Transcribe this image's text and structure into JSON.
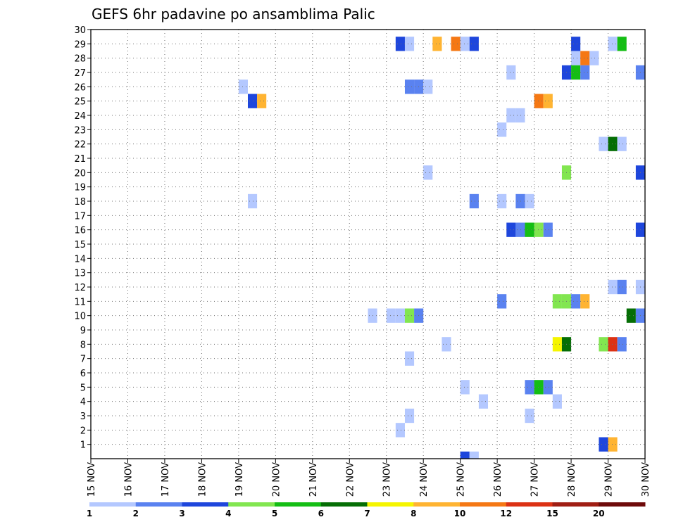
{
  "chart_data": {
    "type": "heatmap",
    "title": "GEFS 6hr padavine po ansamblima Palic",
    "xlabel": "",
    "ylabel": "",
    "x_ticks": [
      "15 NOV",
      "16 NOV",
      "17 NOV",
      "18 NOV",
      "19 NOV",
      "20 NOV",
      "21 NOV",
      "22 NOV",
      "23 NOV",
      "24 NOV",
      "25 NOV",
      "26 NOV",
      "27 NOV",
      "28 NOV",
      "29 NOV",
      "30 NOV"
    ],
    "y_ticks": [
      1,
      2,
      3,
      4,
      5,
      6,
      7,
      8,
      9,
      10,
      11,
      12,
      13,
      14,
      15,
      16,
      17,
      18,
      19,
      20,
      21,
      22,
      23,
      24,
      25,
      26,
      27,
      28,
      29,
      30
    ],
    "xlim_days": [
      0,
      15
    ],
    "ylim": [
      0,
      30
    ],
    "grid": true,
    "legend": {
      "placement": "bottom",
      "labels": [
        "1",
        "2",
        "3",
        "4",
        "5",
        "6",
        "7",
        "8",
        "10",
        "12",
        "15",
        "20"
      ],
      "colors": [
        "#b4c8ff",
        "#5a82f0",
        "#1e46dc",
        "#82e650",
        "#14be14",
        "#056e05",
        "#f5f500",
        "#ffb432",
        "#f57814",
        "#dc3214",
        "#a01e14",
        "#6e0a0a"
      ]
    },
    "cells": [
      {
        "time": "23 NOV 06",
        "member": 29,
        "value": 3
      },
      {
        "time": "23 NOV 12",
        "member": 29,
        "value": 1
      },
      {
        "time": "24 NOV 06",
        "member": 29,
        "value": 8
      },
      {
        "time": "24 NOV 18",
        "member": 29,
        "value": 10
      },
      {
        "time": "25 NOV 00",
        "member": 29,
        "value": 1
      },
      {
        "time": "25 NOV 06",
        "member": 29,
        "value": 3
      },
      {
        "time": "28 NOV 00",
        "member": 29,
        "value": 3
      },
      {
        "time": "29 NOV 00",
        "member": 29,
        "value": 1
      },
      {
        "time": "29 NOV 06",
        "member": 29,
        "value": 5
      },
      {
        "time": "28 NOV 00",
        "member": 28,
        "value": 1
      },
      {
        "time": "28 NOV 06",
        "member": 28,
        "value": 10
      },
      {
        "time": "28 NOV 12",
        "member": 28,
        "value": 1
      },
      {
        "time": "26 NOV 06",
        "member": 27,
        "value": 1
      },
      {
        "time": "27 NOV 18",
        "member": 27,
        "value": 3
      },
      {
        "time": "28 NOV 00",
        "member": 27,
        "value": 5
      },
      {
        "time": "28 NOV 06",
        "member": 27,
        "value": 2
      },
      {
        "time": "29 NOV 18",
        "member": 27,
        "value": 2
      },
      {
        "time": "30 NOV 00",
        "member": 27,
        "value": 2
      },
      {
        "time": "19 NOV 00",
        "member": 26,
        "value": 1
      },
      {
        "time": "23 NOV 12",
        "member": 26,
        "value": 2
      },
      {
        "time": "23 NOV 18",
        "member": 26,
        "value": 2
      },
      {
        "time": "24 NOV 00",
        "member": 26,
        "value": 1
      },
      {
        "time": "19 NOV 06",
        "member": 25,
        "value": 3
      },
      {
        "time": "19 NOV 12",
        "member": 25,
        "value": 8
      },
      {
        "time": "27 NOV 00",
        "member": 25,
        "value": 10
      },
      {
        "time": "27 NOV 06",
        "member": 25,
        "value": 8
      },
      {
        "time": "26 NOV 06",
        "member": 24,
        "value": 1
      },
      {
        "time": "26 NOV 12",
        "member": 24,
        "value": 1
      },
      {
        "time": "26 NOV 00",
        "member": 23,
        "value": 1
      },
      {
        "time": "28 NOV 18",
        "member": 22,
        "value": 1
      },
      {
        "time": "29 NOV 00",
        "member": 22,
        "value": 6
      },
      {
        "time": "29 NOV 06",
        "member": 22,
        "value": 1
      },
      {
        "time": "24 NOV 00",
        "member": 20,
        "value": 1
      },
      {
        "time": "27 NOV 18",
        "member": 20,
        "value": 4
      },
      {
        "time": "29 NOV 18",
        "member": 20,
        "value": 3
      },
      {
        "time": "19 NOV 06",
        "member": 18,
        "value": 1
      },
      {
        "time": "25 NOV 06",
        "member": 18,
        "value": 2
      },
      {
        "time": "26 NOV 00",
        "member": 18,
        "value": 1
      },
      {
        "time": "26 NOV 12",
        "member": 18,
        "value": 2
      },
      {
        "time": "26 NOV 18",
        "member": 18,
        "value": 1
      },
      {
        "time": "26 NOV 06",
        "member": 16,
        "value": 3
      },
      {
        "time": "26 NOV 12",
        "member": 16,
        "value": 2
      },
      {
        "time": "26 NOV 18",
        "member": 16,
        "value": 5
      },
      {
        "time": "27 NOV 00",
        "member": 16,
        "value": 4
      },
      {
        "time": "27 NOV 06",
        "member": 16,
        "value": 2
      },
      {
        "time": "29 NOV 18",
        "member": 16,
        "value": 3
      },
      {
        "time": "29 NOV 00",
        "member": 12,
        "value": 1
      },
      {
        "time": "29 NOV 06",
        "member": 12,
        "value": 2
      },
      {
        "time": "29 NOV 18",
        "member": 12,
        "value": 1
      },
      {
        "time": "30 NOV 00",
        "member": 12,
        "value": 1
      },
      {
        "time": "26 NOV 00",
        "member": 11,
        "value": 2
      },
      {
        "time": "27 NOV 12",
        "member": 11,
        "value": 4
      },
      {
        "time": "27 NOV 18",
        "member": 11,
        "value": 4
      },
      {
        "time": "28 NOV 00",
        "member": 11,
        "value": 2
      },
      {
        "time": "28 NOV 06",
        "member": 11,
        "value": 8
      },
      {
        "time": "22 NOV 12",
        "member": 10,
        "value": 1
      },
      {
        "time": "23 NOV 00",
        "member": 10,
        "value": 1
      },
      {
        "time": "23 NOV 06",
        "member": 10,
        "value": 1
      },
      {
        "time": "23 NOV 12",
        "member": 10,
        "value": 4
      },
      {
        "time": "23 NOV 18",
        "member": 10,
        "value": 2
      },
      {
        "time": "29 NOV 12",
        "member": 10,
        "value": 6
      },
      {
        "time": "29 NOV 18",
        "member": 10,
        "value": 2
      },
      {
        "time": "30 NOV 00",
        "member": 10,
        "value": 1
      },
      {
        "time": "24 NOV 12",
        "member": 8,
        "value": 1
      },
      {
        "time": "27 NOV 12",
        "member": 8,
        "value": 7
      },
      {
        "time": "27 NOV 18",
        "member": 8,
        "value": 6
      },
      {
        "time": "28 NOV 18",
        "member": 8,
        "value": 4
      },
      {
        "time": "29 NOV 00",
        "member": 8,
        "value": 12
      },
      {
        "time": "29 NOV 06",
        "member": 8,
        "value": 2
      },
      {
        "time": "23 NOV 12",
        "member": 7,
        "value": 1
      },
      {
        "time": "25 NOV 00",
        "member": 5,
        "value": 1
      },
      {
        "time": "26 NOV 18",
        "member": 5,
        "value": 2
      },
      {
        "time": "27 NOV 00",
        "member": 5,
        "value": 5
      },
      {
        "time": "27 NOV 06",
        "member": 5,
        "value": 2
      },
      {
        "time": "30 NOV 00",
        "member": 5,
        "value": 1
      },
      {
        "time": "25 NOV 12",
        "member": 4,
        "value": 1
      },
      {
        "time": "27 NOV 12",
        "member": 4,
        "value": 1
      },
      {
        "time": "23 NOV 12",
        "member": 3,
        "value": 1
      },
      {
        "time": "26 NOV 18",
        "member": 3,
        "value": 1
      },
      {
        "time": "23 NOV 06",
        "member": 2,
        "value": 1
      },
      {
        "time": "28 NOV 18",
        "member": 1,
        "value": 3
      },
      {
        "time": "29 NOV 00",
        "member": 1,
        "value": 8
      },
      {
        "time": "25 NOV 00",
        "member": 0,
        "value": 3
      },
      {
        "time": "25 NOV 06",
        "member": 0,
        "value": 1
      }
    ]
  }
}
